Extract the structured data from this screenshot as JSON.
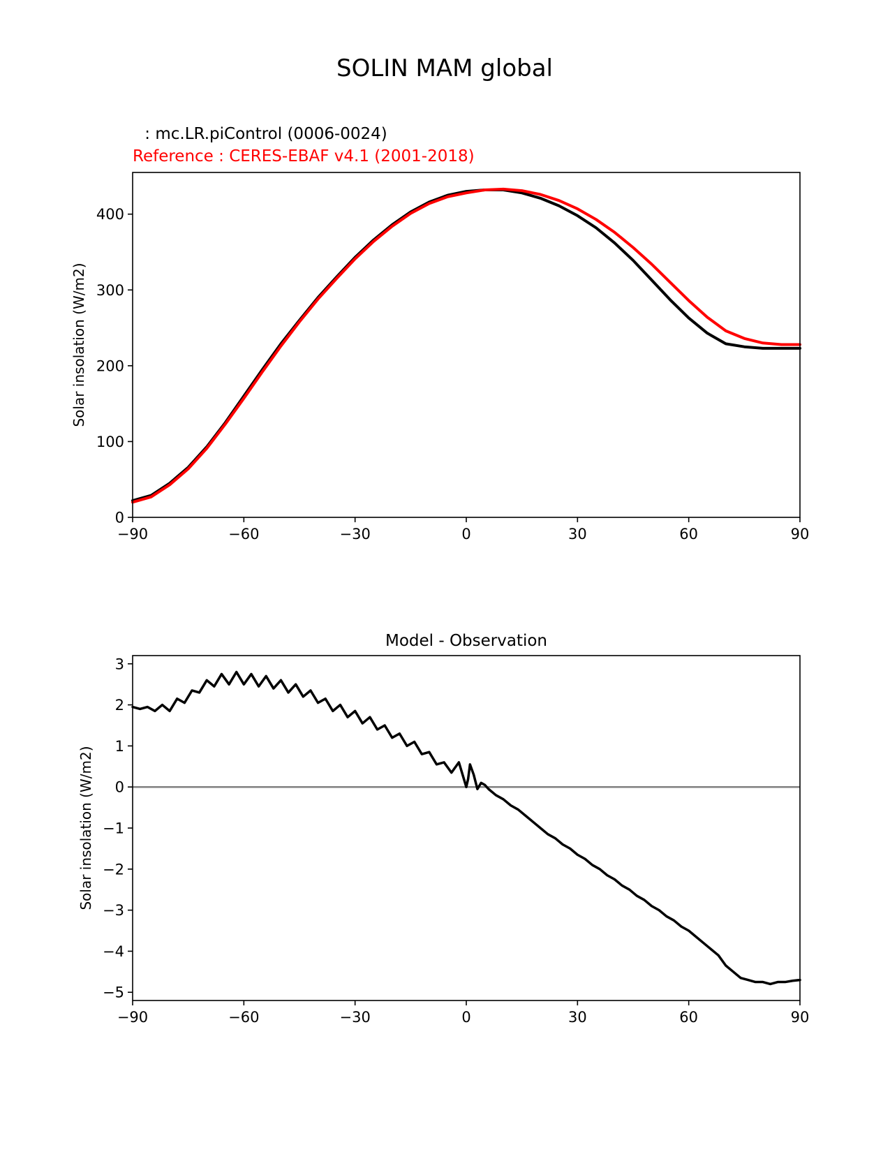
{
  "figure": {
    "title": "SOLIN MAM global",
    "test_label": " : mc.LR.piControl (0006-0024)",
    "reference_label": "Reference : CERES-EBAF v4.1 (2001-2018)"
  },
  "colors": {
    "test": "#000000",
    "reference": "#ff0000",
    "zero_line": "#808080",
    "axes": "#000000"
  },
  "chart_data": [
    {
      "type": "line",
      "title": "",
      "xlabel": "",
      "ylabel": "Solar insolation (W/m2)",
      "xlim": [
        -90,
        90
      ],
      "ylim": [
        0,
        455
      ],
      "xticks": [
        -90,
        -60,
        -30,
        0,
        30,
        60,
        90
      ],
      "xtick_labels": [
        "−90",
        "−60",
        "−30",
        "0",
        "30",
        "60",
        "90"
      ],
      "yticks": [
        0,
        100,
        200,
        300,
        400
      ],
      "ytick_labels": [
        "0",
        "100",
        "200",
        "300",
        "400"
      ],
      "grid": false,
      "x": [
        -90,
        -85,
        -80,
        -75,
        -70,
        -65,
        -60,
        -55,
        -50,
        -45,
        -40,
        -35,
        -30,
        -25,
        -20,
        -15,
        -10,
        -5,
        0,
        5,
        10,
        15,
        20,
        25,
        30,
        35,
        40,
        45,
        50,
        55,
        60,
        65,
        70,
        75,
        80,
        85,
        90
      ],
      "series": [
        {
          "role": "test",
          "values": [
            22,
            29,
            45,
            66,
            93,
            125,
            160,
            195,
            229,
            260,
            290,
            317,
            343,
            366,
            386,
            403,
            416,
            425,
            430,
            432,
            432,
            428,
            421,
            411,
            398,
            382,
            362,
            339,
            313,
            287,
            263,
            243,
            229,
            225,
            223,
            223,
            223
          ]
        },
        {
          "role": "reference",
          "values": [
            20,
            27,
            43,
            64,
            91,
            123,
            157,
            192,
            226,
            258,
            288,
            315,
            341,
            364,
            384,
            401,
            414,
            423,
            428,
            432,
            433,
            431,
            426,
            418,
            407,
            393,
            376,
            356,
            334,
            310,
            286,
            264,
            246,
            236,
            230,
            228,
            228
          ]
        }
      ]
    },
    {
      "type": "line",
      "title": "Model - Observation",
      "xlabel": "",
      "ylabel": "Solar insolation (W/m2)",
      "xlim": [
        -90,
        90
      ],
      "ylim": [
        -5.2,
        3.2
      ],
      "xticks": [
        -90,
        -60,
        -30,
        0,
        30,
        60,
        90
      ],
      "xtick_labels": [
        "−90",
        "−60",
        "−30",
        "0",
        "30",
        "60",
        "90"
      ],
      "yticks": [
        3,
        2,
        1,
        0,
        -1,
        -2,
        -3,
        -4,
        -5
      ],
      "ytick_labels": [
        "3",
        "2",
        "1",
        "0",
        "−1",
        "−2",
        "−3",
        "−4",
        "−5"
      ],
      "grid": false,
      "zero_line": 0,
      "x": [
        -90,
        -88,
        -86,
        -84,
        -82,
        -80,
        -78,
        -76,
        -74,
        -72,
        -70,
        -68,
        -66,
        -64,
        -62,
        -60,
        -58,
        -56,
        -54,
        -52,
        -50,
        -48,
        -46,
        -44,
        -42,
        -40,
        -38,
        -36,
        -34,
        -32,
        -30,
        -28,
        -26,
        -24,
        -22,
        -20,
        -18,
        -16,
        -14,
        -12,
        -10,
        -8,
        -6,
        -4,
        -2,
        0,
        0.5,
        1,
        2,
        3,
        4,
        5,
        6,
        8,
        10,
        12,
        14,
        16,
        18,
        20,
        22,
        24,
        26,
        28,
        30,
        32,
        34,
        36,
        38,
        40,
        42,
        44,
        46,
        48,
        50,
        52,
        54,
        56,
        58,
        60,
        62,
        64,
        66,
        68,
        70,
        72,
        74,
        76,
        78,
        80,
        82,
        84,
        86,
        88,
        90
      ],
      "series": [
        {
          "role": "difference",
          "values": [
            1.95,
            1.9,
            1.95,
            1.85,
            2.0,
            1.85,
            2.15,
            2.05,
            2.35,
            2.3,
            2.6,
            2.45,
            2.75,
            2.5,
            2.8,
            2.5,
            2.75,
            2.45,
            2.7,
            2.4,
            2.6,
            2.3,
            2.5,
            2.2,
            2.35,
            2.05,
            2.15,
            1.85,
            2.0,
            1.7,
            1.85,
            1.55,
            1.7,
            1.4,
            1.5,
            1.2,
            1.3,
            1.0,
            1.1,
            0.8,
            0.85,
            0.55,
            0.6,
            0.35,
            0.6,
            0.0,
            0.2,
            0.55,
            0.3,
            -0.05,
            0.1,
            0.05,
            -0.05,
            -0.2,
            -0.3,
            -0.45,
            -0.55,
            -0.7,
            -0.85,
            -1.0,
            -1.15,
            -1.25,
            -1.4,
            -1.5,
            -1.65,
            -1.75,
            -1.9,
            -2.0,
            -2.15,
            -2.25,
            -2.4,
            -2.5,
            -2.65,
            -2.75,
            -2.9,
            -3.0,
            -3.15,
            -3.25,
            -3.4,
            -3.5,
            -3.65,
            -3.8,
            -3.95,
            -4.1,
            -4.35,
            -4.5,
            -4.65,
            -4.7,
            -4.75,
            -4.75,
            -4.8,
            -4.75,
            -4.75,
            -4.72,
            -4.7
          ]
        }
      ]
    }
  ]
}
